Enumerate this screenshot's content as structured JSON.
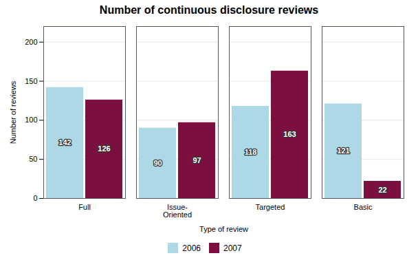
{
  "chart_data": {
    "type": "bar",
    "title": "Number of continuous disclosure reviews",
    "categories": [
      "Full",
      "Issue-\nOriented",
      "Targeted",
      "Basic"
    ],
    "series": [
      {
        "name": "2006",
        "color": "#add8e6",
        "values": [
          142,
          90,
          118,
          121
        ]
      },
      {
        "name": "2007",
        "color": "#7b1040",
        "values": [
          126,
          97,
          163,
          22
        ]
      }
    ],
    "xlabel": "Type of review",
    "ylabel": "Number of reviews",
    "ylim": [
      0,
      220
    ],
    "yticks": [
      0,
      50,
      100,
      150,
      200
    ],
    "grid": true,
    "legend": "bottom",
    "data_labels": true
  }
}
